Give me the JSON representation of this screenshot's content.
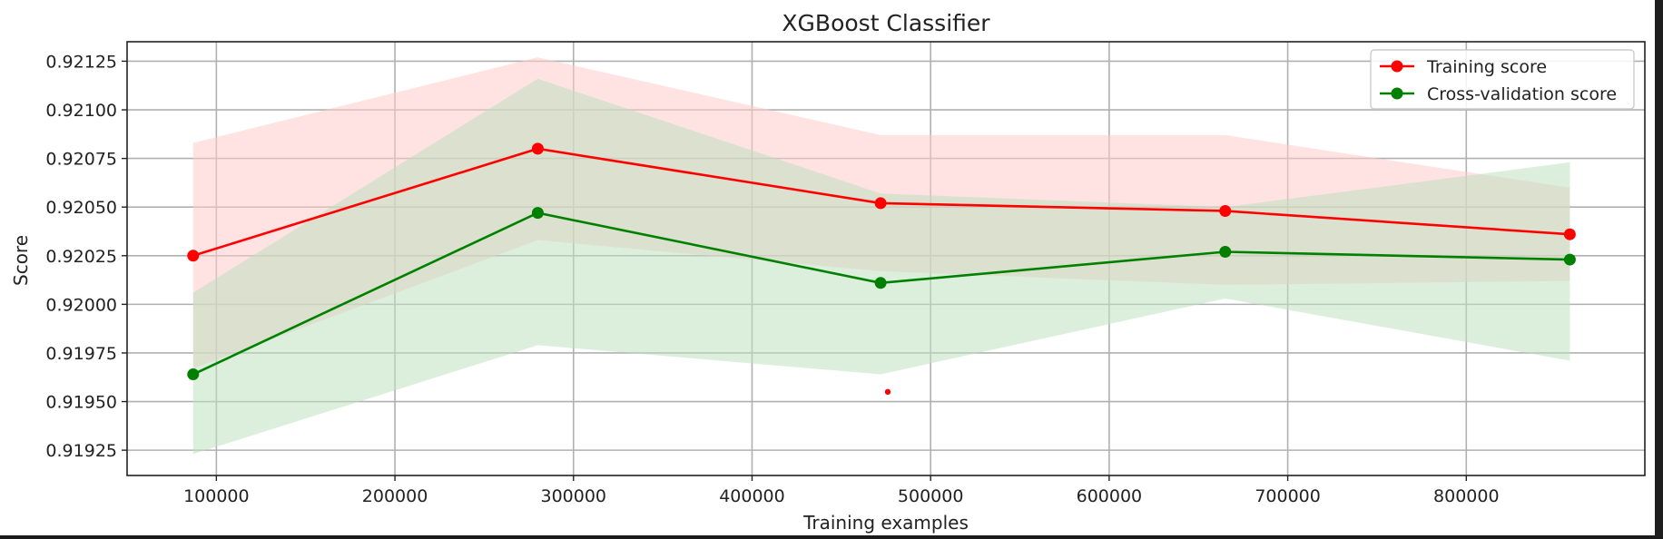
{
  "chart_data": {
    "type": "line",
    "title": "XGBoost Classifier",
    "xlabel": "Training examples",
    "ylabel": "Score",
    "xlim": [
      50000,
      900000
    ],
    "ylim": [
      0.91912,
      0.92135
    ],
    "x_ticks": [
      100000,
      200000,
      300000,
      400000,
      500000,
      600000,
      700000,
      800000
    ],
    "x_tick_labels": [
      "100000",
      "200000",
      "300000",
      "400000",
      "500000",
      "600000",
      "700000",
      "800000"
    ],
    "y_ticks": [
      0.91925,
      0.9195,
      0.91975,
      0.92,
      0.92025,
      0.9205,
      0.92075,
      0.921,
      0.92125
    ],
    "y_tick_labels": [
      "0.91925",
      "0.91950",
      "0.91975",
      "0.92000",
      "0.92025",
      "0.92050",
      "0.92075",
      "0.92100",
      "0.92125"
    ],
    "grid": true,
    "legend_position": "top-right",
    "x": [
      87000,
      280000,
      472000,
      665000,
      858000
    ],
    "series": [
      {
        "name": "Training score",
        "color": "#ff0000",
        "band_color": "#ffcccc",
        "values": [
          0.92025,
          0.9208,
          0.92052,
          0.92048,
          0.92036
        ],
        "lower": [
          0.91967,
          0.92033,
          0.92017,
          0.9201,
          0.92012
        ],
        "upper": [
          0.92083,
          0.92127,
          0.92087,
          0.92087,
          0.9206
        ]
      },
      {
        "name": "Cross-validation score",
        "color": "#008000",
        "band_color": "#bfe0bf",
        "values": [
          0.91964,
          0.92047,
          0.92011,
          0.92027,
          0.92023
        ],
        "lower": [
          0.91923,
          0.91979,
          0.91964,
          0.92003,
          0.91971
        ],
        "upper": [
          0.92006,
          0.92116,
          0.92057,
          0.9205,
          0.92073
        ]
      }
    ],
    "annotations": [
      {
        "type": "dot",
        "x": 476000,
        "y": 0.91955,
        "color": "#ff0000"
      }
    ]
  }
}
